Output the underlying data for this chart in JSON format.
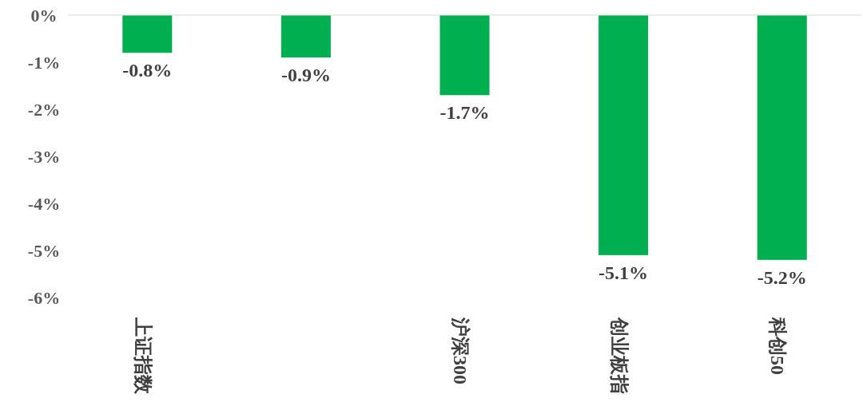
{
  "chart_data": {
    "type": "bar",
    "categories": [
      "上证指数",
      null,
      "沪深300",
      "创业板指",
      "科创50"
    ],
    "values": [
      -0.8,
      -0.9,
      -1.7,
      -5.1,
      -5.2
    ],
    "value_labels": [
      "-0.8%",
      "-0.9%",
      "-1.7%",
      "-5.1%",
      "-5.2%"
    ],
    "color": "#00b050",
    "ylim": [
      -6,
      0
    ],
    "yticks": [
      {
        "value": 0,
        "label": "0%"
      },
      {
        "value": -1,
        "label": "-1%"
      },
      {
        "value": -2,
        "label": "-2%"
      },
      {
        "value": -3,
        "label": "-3%"
      },
      {
        "value": -4,
        "label": "-4%"
      },
      {
        "value": -5,
        "label": "-5%"
      },
      {
        "value": -6,
        "label": "-6%"
      }
    ],
    "grid": false
  }
}
